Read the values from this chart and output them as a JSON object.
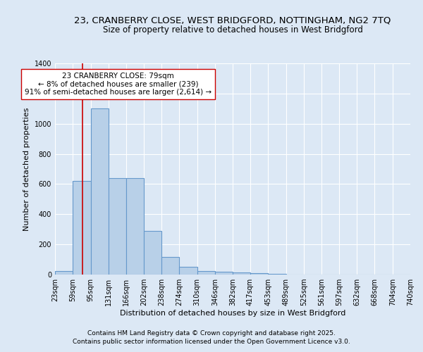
{
  "title1": "23, CRANBERRY CLOSE, WEST BRIDGFORD, NOTTINGHAM, NG2 7TQ",
  "title2": "Size of property relative to detached houses in West Bridgford",
  "xlabel": "Distribution of detached houses by size in West Bridgford",
  "ylabel": "Number of detached properties",
  "bin_edges": [
    23,
    59,
    95,
    131,
    166,
    202,
    238,
    274,
    310,
    346,
    382,
    417,
    453,
    489,
    525,
    561,
    597,
    632,
    668,
    704,
    740
  ],
  "bin_labels": [
    "23sqm",
    "59sqm",
    "95sqm",
    "131sqm",
    "166sqm",
    "202sqm",
    "238sqm",
    "274sqm",
    "310sqm",
    "346sqm",
    "382sqm",
    "417sqm",
    "453sqm",
    "489sqm",
    "525sqm",
    "561sqm",
    "597sqm",
    "632sqm",
    "668sqm",
    "704sqm",
    "740sqm"
  ],
  "bar_heights": [
    25,
    620,
    1100,
    640,
    640,
    290,
    115,
    50,
    25,
    20,
    15,
    8,
    3,
    2,
    1,
    1,
    0,
    0,
    0,
    0
  ],
  "bar_color": "#b8d0e8",
  "bar_edge_color": "#6699cc",
  "bg_color": "#dce8f5",
  "grid_color": "#ffffff",
  "property_size": 79,
  "vline_color": "#cc0000",
  "annotation_text": "23 CRANBERRY CLOSE: 79sqm\n← 8% of detached houses are smaller (239)\n91% of semi-detached houses are larger (2,614) →",
  "annotation_box_color": "#ffffff",
  "annotation_box_edge": "#cc0000",
  "ylim": [
    0,
    1400
  ],
  "yticks": [
    0,
    200,
    400,
    600,
    800,
    1000,
    1200,
    1400
  ],
  "footnote1": "Contains HM Land Registry data © Crown copyright and database right 2025.",
  "footnote2": "Contains public sector information licensed under the Open Government Licence v3.0.",
  "title1_fontsize": 9.5,
  "title2_fontsize": 8.5,
  "axis_label_fontsize": 8,
  "tick_fontsize": 7,
  "annotation_fontsize": 7.5,
  "footnote_fontsize": 6.5
}
